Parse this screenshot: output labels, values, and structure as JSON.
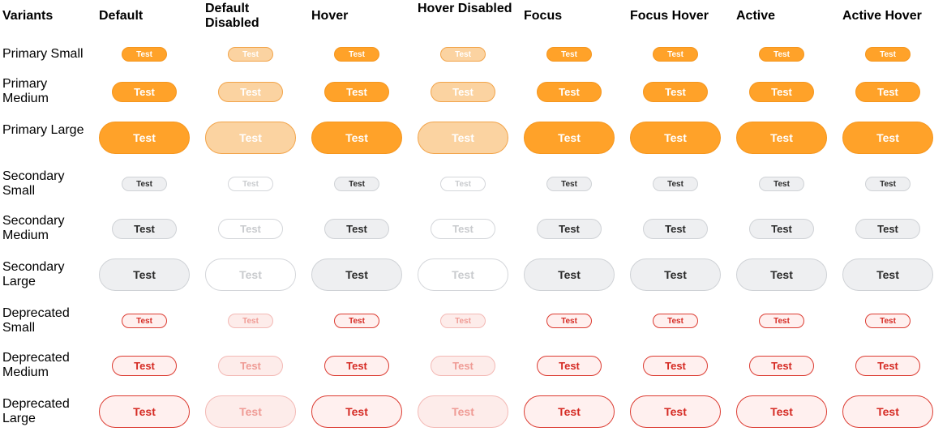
{
  "header": {
    "variants": "Variants",
    "columns": [
      "Default",
      "Default Disabled",
      "Hover",
      "Hover Disabled",
      "Focus",
      "Focus Hover",
      "Active",
      "Active Hover"
    ]
  },
  "button_text": "Test",
  "rows": [
    {
      "label": "Primary Small",
      "kind": "primary",
      "size": "small"
    },
    {
      "label": "Primary Medium",
      "kind": "primary",
      "size": "medium"
    },
    {
      "label": "Primary Large",
      "kind": "primary",
      "size": "large"
    },
    {
      "label": "Secondary Small",
      "kind": "secondary",
      "size": "small"
    },
    {
      "label": "Secondary Medium",
      "kind": "secondary",
      "size": "medium"
    },
    {
      "label": "Secondary Large",
      "kind": "secondary",
      "size": "large"
    },
    {
      "label": "Deprecated Small",
      "kind": "deprecated",
      "size": "small"
    },
    {
      "label": "Deprecated Medium",
      "kind": "deprecated",
      "size": "medium"
    },
    {
      "label": "Deprecated Large",
      "kind": "deprecated",
      "size": "large"
    }
  ],
  "disabled_columns": [
    1,
    3
  ],
  "colors": {
    "primary": "#ffa229",
    "primary_disabled": "#fbd3a1",
    "secondary": "#eeeff1",
    "deprecated_text": "#d52b24",
    "deprecated_bg": "#fff0ef"
  }
}
